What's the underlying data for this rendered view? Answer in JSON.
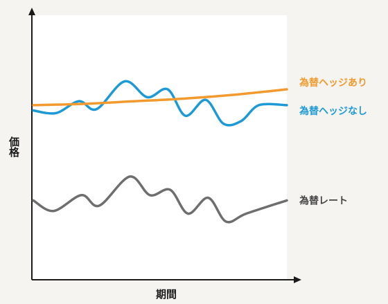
{
  "chart_data": {
    "type": "line",
    "title": "",
    "xlabel": "期間",
    "ylabel": "価格",
    "xlim": [
      0,
      10
    ],
    "ylim": [
      0,
      10
    ],
    "grid": false,
    "legend": "right-inline",
    "series": [
      {
        "name": "為替ヘッジあり",
        "color": "#f29a2e",
        "x": [
          0,
          2,
          4,
          6,
          8,
          10
        ],
        "y": [
          6.6,
          6.65,
          6.75,
          6.85,
          7.0,
          7.2
        ]
      },
      {
        "name": "為替ヘッジなし",
        "color": "#1d9ad6",
        "x": [
          0,
          0.9,
          1.8,
          2.5,
          3.6,
          4.5,
          5.3,
          6.0,
          6.8,
          7.5,
          8.2,
          8.9,
          10
        ],
        "y": [
          6.4,
          6.3,
          6.75,
          6.45,
          7.5,
          6.9,
          7.2,
          6.2,
          6.8,
          5.9,
          6.0,
          6.6,
          6.6
        ]
      },
      {
        "name": "為替レート",
        "color": "#6e6e6e",
        "x": [
          0,
          0.8,
          1.9,
          2.6,
          3.8,
          4.6,
          5.4,
          6.1,
          6.9,
          7.6,
          8.4,
          10
        ],
        "y": [
          3.0,
          2.6,
          3.2,
          2.8,
          3.9,
          3.2,
          3.4,
          2.5,
          3.1,
          2.2,
          2.5,
          3.0
        ]
      }
    ]
  }
}
